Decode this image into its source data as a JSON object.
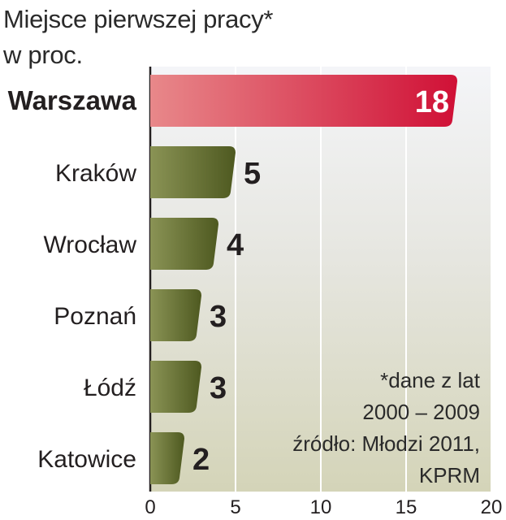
{
  "title": {
    "line1": "Miejsce pierwszej pracy*",
    "line2": "w proc."
  },
  "chart_data": {
    "type": "bar",
    "orientation": "horizontal",
    "categories": [
      "Warszawa",
      "Kraków",
      "Wrocław",
      "Poznań",
      "Łódź",
      "Katowice"
    ],
    "values": [
      18,
      5,
      4,
      3,
      3,
      2
    ],
    "value_labels": [
      "18",
      "5",
      "4",
      "3",
      "3",
      "2"
    ],
    "xlim": [
      0,
      20
    ],
    "xticks": [
      "0",
      "5",
      "10",
      "15",
      "20"
    ],
    "grid": true,
    "highlight_category": "Warszawa",
    "colors": {
      "highlight_start": "#e88a8a",
      "highlight_end": "#d4143a",
      "bar_dark": "#4f5a22",
      "bar_light": "#8b9456",
      "background_band": "#dcdcc6",
      "background_top": "#eef0f5"
    }
  },
  "notes": {
    "line1": "*dane z lat",
    "line2": "2000 – 2009",
    "line3": "źródło: Młodzi 2011,",
    "line4": "KPRM"
  }
}
